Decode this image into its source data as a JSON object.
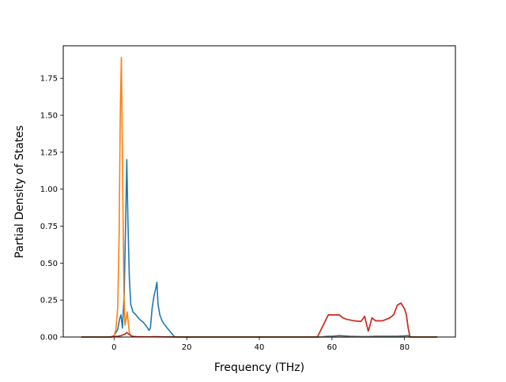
{
  "chart_data": {
    "type": "line",
    "title": "",
    "xlabel": "Frequency (THz)",
    "ylabel": "Partial Density of States",
    "xlim": [
      -14,
      94
    ],
    "ylim": [
      0,
      1.97
    ],
    "xticks": [
      0,
      20,
      40,
      60,
      80
    ],
    "yticks": [
      0.0,
      0.25,
      0.5,
      0.75,
      1.0,
      1.25,
      1.5,
      1.75
    ],
    "xtick_labels": [
      "0",
      "20",
      "40",
      "60",
      "80"
    ],
    "ytick_labels": [
      "0.00",
      "0.25",
      "0.50",
      "0.75",
      "1.00",
      "1.25",
      "1.50",
      "1.75"
    ],
    "grid": false,
    "legend": "none",
    "series": [
      {
        "color": "#1f77b4",
        "x": [
          -9,
          -1,
          0,
          1,
          1.5,
          1.9,
          2.3,
          2.8,
          3.2,
          3.5,
          3.8,
          4.2,
          4.6,
          5.2,
          6,
          7,
          8,
          9,
          9.6,
          10,
          10.5,
          11,
          11.5,
          11.8,
          12.1,
          12.6,
          13.2,
          14,
          15,
          16,
          16.5,
          17,
          20,
          56,
          57,
          58,
          59,
          60,
          62,
          65,
          68,
          70,
          72,
          75,
          78,
          80,
          81,
          81.5,
          89
        ],
        "y": [
          0,
          0,
          0.01,
          0.05,
          0.12,
          0.15,
          0.06,
          0.3,
          0.8,
          1.2,
          0.8,
          0.4,
          0.22,
          0.17,
          0.15,
          0.12,
          0.1,
          0.07,
          0.045,
          0.06,
          0.2,
          0.28,
          0.33,
          0.37,
          0.22,
          0.15,
          0.11,
          0.08,
          0.05,
          0.02,
          0.005,
          0,
          0,
          0,
          0,
          0.003,
          0.005,
          0.005,
          0.01,
          0.005,
          0.003,
          0.003,
          0.005,
          0.005,
          0.005,
          0.008,
          0.01,
          0,
          0
        ]
      },
      {
        "color": "#ff7f0e",
        "x": [
          -9,
          -1,
          0,
          0.5,
          1,
          1.4,
          1.7,
          2.0,
          2.3,
          2.7,
          3.0,
          3.3,
          3.6,
          3.9,
          4.2,
          4.6,
          5,
          6,
          8,
          10,
          11,
          12,
          13,
          15,
          20,
          89
        ],
        "y": [
          0,
          0,
          0.005,
          0.05,
          0.2,
          0.7,
          1.5,
          1.89,
          1.2,
          0.3,
          0.08,
          0.12,
          0.17,
          0.1,
          0.03,
          0.01,
          0.005,
          0.003,
          0.002,
          0.001,
          0.004,
          0.003,
          0.002,
          0.001,
          0,
          0
        ]
      },
      {
        "color": "#2ca02c",
        "x": [
          -9,
          -1,
          0,
          1,
          2,
          3,
          3.5,
          4,
          5,
          6,
          20,
          56,
          57,
          58,
          59,
          60,
          61,
          62,
          63,
          64,
          66,
          68,
          69,
          69.5,
          70,
          70.5,
          71,
          72,
          74,
          76,
          77,
          78,
          79,
          80,
          80.5,
          81,
          81.5,
          89
        ],
        "y": [
          0,
          0,
          0.002,
          0.005,
          0.01,
          0.02,
          0.03,
          0.02,
          0.005,
          0.002,
          0,
          0,
          0.05,
          0.1,
          0.15,
          0.15,
          0.15,
          0.15,
          0.13,
          0.12,
          0.11,
          0.105,
          0.14,
          0.09,
          0.04,
          0.08,
          0.13,
          0.11,
          0.11,
          0.13,
          0.15,
          0.215,
          0.23,
          0.19,
          0.15,
          0.06,
          0,
          0
        ]
      },
      {
        "color": "#d62728",
        "x": [
          -9,
          -1,
          0,
          1,
          2,
          3,
          3.5,
          4,
          5,
          6,
          20,
          56,
          57,
          58,
          59,
          60,
          61,
          62,
          63,
          64,
          66,
          68,
          69,
          69.5,
          70,
          70.5,
          71,
          72,
          74,
          76,
          77,
          78,
          79,
          80,
          80.5,
          81,
          81.5,
          89
        ],
        "y": [
          0,
          0,
          0.002,
          0.005,
          0.01,
          0.02,
          0.03,
          0.02,
          0.005,
          0.002,
          0,
          0,
          0.05,
          0.1,
          0.15,
          0.15,
          0.15,
          0.15,
          0.13,
          0.12,
          0.11,
          0.105,
          0.14,
          0.09,
          0.04,
          0.08,
          0.13,
          0.11,
          0.11,
          0.13,
          0.15,
          0.215,
          0.23,
          0.19,
          0.15,
          0.06,
          0,
          0
        ]
      }
    ]
  }
}
